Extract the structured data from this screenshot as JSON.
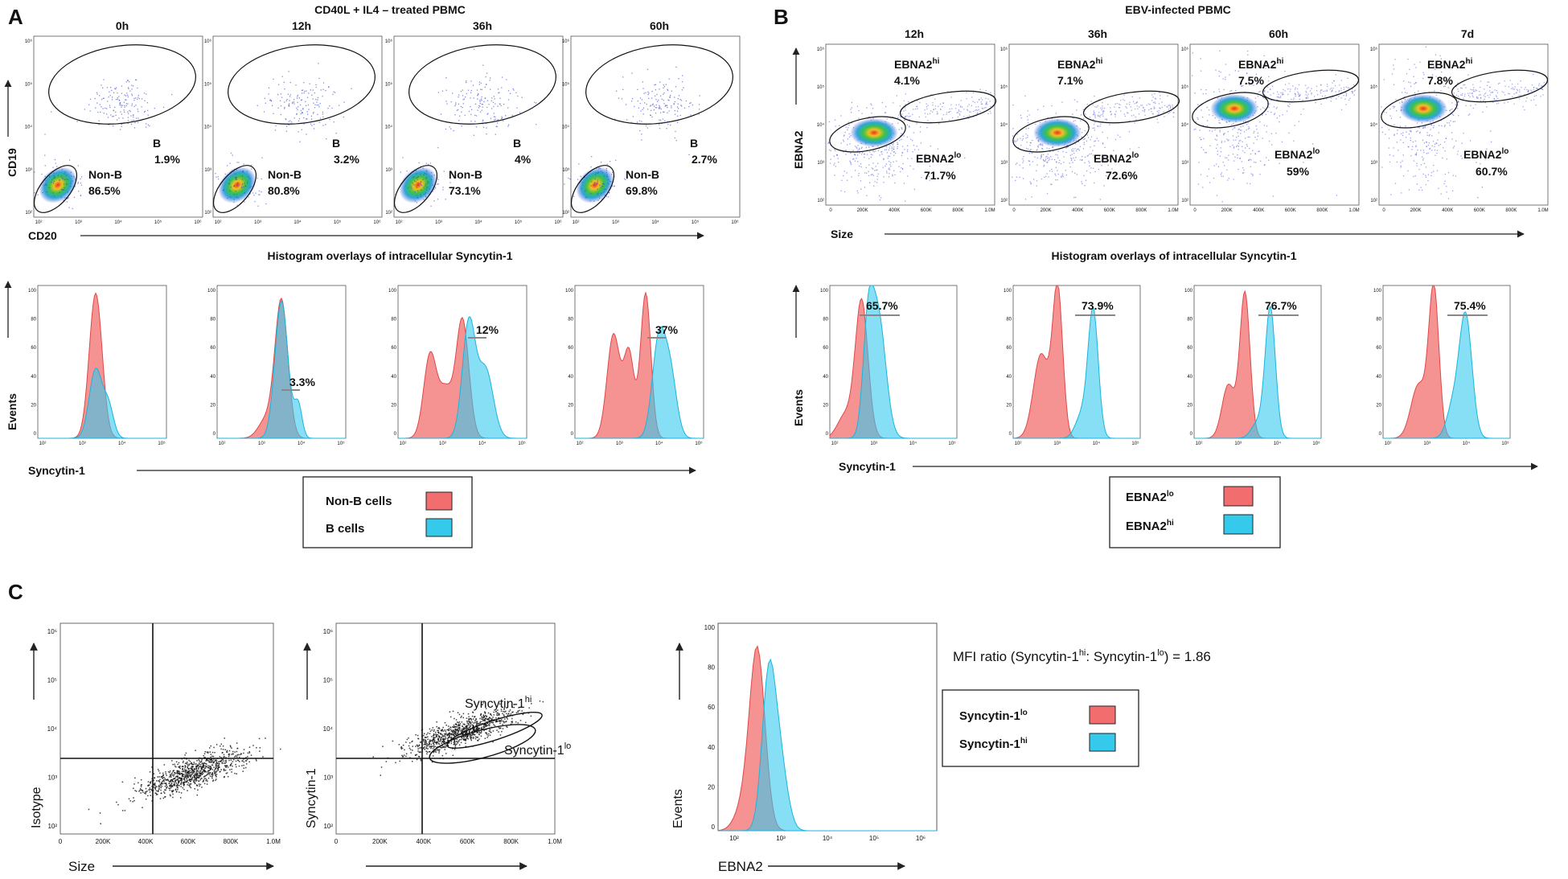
{
  "panel_labels": [
    "A",
    "B",
    "C"
  ],
  "panelA": {
    "title": "CD40L + IL4 – treated PBMC",
    "dot_plots": [
      {
        "time": "0h",
        "gate_B": "B",
        "pct_B": "1.9%",
        "gate_nonB": "Non-B",
        "pct_nonB": "86.5%"
      },
      {
        "time": "12h",
        "gate_B": "B",
        "pct_B": "3.2%",
        "gate_nonB": "Non-B",
        "pct_nonB": "80.8%"
      },
      {
        "time": "36h",
        "gate_B": "B",
        "pct_B": "4%",
        "gate_nonB": "Non-B",
        "pct_nonB": "73.1%"
      },
      {
        "time": "60h",
        "gate_B": "B",
        "pct_B": "2.7%",
        "gate_nonB": "Non-B",
        "pct_nonB": "69.8%"
      }
    ],
    "y_axis": "CD19",
    "x_axis": "CD20",
    "hist_title": "Histogram overlays of intracellular Syncytin-1",
    "hist_y_axis": "Events",
    "hist_x_axis": "Syncytin-1",
    "hist_pcts": [
      "",
      "3.3%",
      "12%",
      "37%"
    ],
    "legend": [
      {
        "label": "Non-B cells",
        "color": "#f26d6d"
      },
      {
        "label": "B cells",
        "color": "#35c9ec"
      }
    ]
  },
  "panelB": {
    "title": "EBV-infected PBMC",
    "dot_plots": [
      {
        "time": "12h",
        "hi_label": "EBNA2",
        "hi_sup": "hi",
        "pct_hi": "4.1%",
        "lo_label": "EBNA2",
        "lo_sup": "lo",
        "pct_lo": "71.7%"
      },
      {
        "time": "36h",
        "hi_label": "EBNA2",
        "hi_sup": "hi",
        "pct_hi": "7.1%",
        "lo_label": "EBNA2",
        "lo_sup": "lo",
        "pct_lo": "72.6%"
      },
      {
        "time": "60h",
        "hi_label": "EBNA2",
        "hi_sup": "hi",
        "pct_hi": "7.5%",
        "lo_label": "EBNA2",
        "lo_sup": "lo",
        "pct_lo": "59%"
      },
      {
        "time": "7d",
        "hi_label": "EBNA2",
        "hi_sup": "hi",
        "pct_hi": "7.8%",
        "lo_label": "EBNA2",
        "lo_sup": "lo",
        "pct_lo": "60.7%"
      }
    ],
    "y_axis": "EBNA2",
    "x_axis": "Size",
    "hist_title": "Histogram overlays of intracellular Syncytin-1",
    "hist_y_axis": "Events",
    "hist_x_axis": "Syncytin-1",
    "hist_pcts": [
      "65.7%",
      "73.9%",
      "76.7%",
      "75.4%"
    ],
    "legend": [
      {
        "label": "EBNA2",
        "sup": "lo",
        "color": "#f26d6d"
      },
      {
        "label": "EBNA2",
        "sup": "hi",
        "color": "#35c9ec"
      }
    ]
  },
  "panelC": {
    "plot1": {
      "y_axis": "Isotype",
      "x_axis": "Size"
    },
    "plot2": {
      "y_axis": "Syncytin-1",
      "gate_hi": "Syncytin-1",
      "gate_hi_sup": "hi",
      "gate_lo": "Syncytin-1",
      "gate_lo_sup": "lo"
    },
    "hist": {
      "y_axis": "Events",
      "x_axis": "EBNA2"
    },
    "mfi_prefix": "MFI ratio (Syncytin-1",
    "mfi_sup1": "hi",
    "mfi_mid": ": Syncytin-1",
    "mfi_sup2": "lo",
    "mfi_suffix": ") = 1.86",
    "mfi_value": 1.86,
    "legend": [
      {
        "label": "Syncytin-1",
        "sup": "lo",
        "color": "#f26d6d"
      },
      {
        "label": "Syncytin-1",
        "sup": "hi",
        "color": "#35c9ec"
      }
    ]
  },
  "ticks": {
    "log6": [
      "10²",
      "10³",
      "10⁴",
      "10⁵",
      "10⁶"
    ],
    "log5": [
      "10²",
      "10³",
      "10⁴",
      "10⁵"
    ],
    "size": [
      "0",
      "200K",
      "400K",
      "600K",
      "800K",
      "1.0M"
    ],
    "pct": [
      "0",
      "20",
      "40",
      "60",
      "80",
      "100"
    ]
  }
}
